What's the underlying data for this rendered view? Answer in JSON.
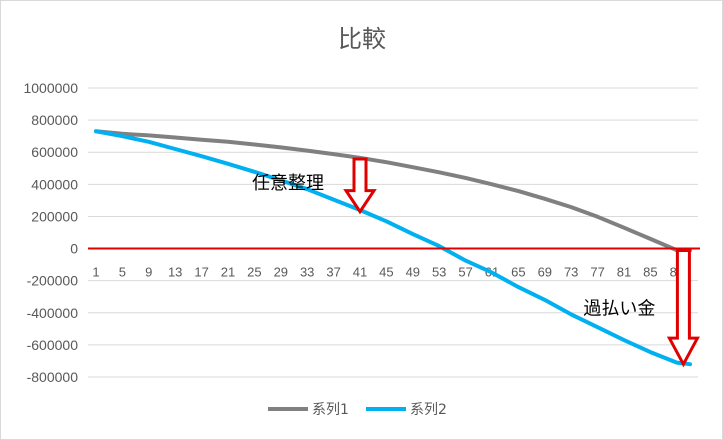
{
  "chart_data": {
    "type": "line",
    "title": "比較",
    "xlabel": "",
    "ylabel": "",
    "x_tick_labels": [
      "1",
      "5",
      "9",
      "13",
      "17",
      "21",
      "25",
      "29",
      "33",
      "37",
      "41",
      "45",
      "49",
      "53",
      "57",
      "61",
      "65",
      "69",
      "73",
      "77",
      "81",
      "85",
      "89"
    ],
    "x_range": [
      1,
      91
    ],
    "ylim": [
      -800000,
      1000000
    ],
    "y_ticks": [
      1000000,
      800000,
      600000,
      400000,
      200000,
      0,
      -200000,
      -400000,
      -600000,
      -800000
    ],
    "y_tick_labels": [
      "1000000",
      "800000",
      "600000",
      "400000",
      "200000",
      "0",
      "-200000",
      "-400000",
      "-600000",
      "-800000"
    ],
    "grid": true,
    "legend_position": "bottom",
    "series": [
      {
        "name": "系列1",
        "color": "#808080",
        "x": [
          1,
          5,
          9,
          13,
          17,
          21,
          25,
          29,
          33,
          37,
          41,
          45,
          49,
          53,
          57,
          61,
          65,
          69,
          73,
          77,
          81,
          85,
          89,
          91
        ],
        "values": [
          730000,
          715000,
          705000,
          692000,
          678000,
          665000,
          648000,
          630000,
          610000,
          588000,
          565000,
          538000,
          507000,
          475000,
          440000,
          400000,
          358000,
          310000,
          258000,
          198000,
          130000,
          60000,
          -10000,
          -10000
        ]
      },
      {
        "name": "系列2",
        "color": "#00B0F0",
        "x": [
          1,
          5,
          9,
          13,
          17,
          21,
          25,
          29,
          33,
          37,
          41,
          45,
          49,
          53,
          57,
          61,
          65,
          69,
          73,
          77,
          81,
          85,
          89,
          91
        ],
        "values": [
          730000,
          700000,
          665000,
          620000,
          575000,
          528000,
          478000,
          425000,
          370000,
          305000,
          240000,
          170000,
          90000,
          15000,
          -75000,
          -150000,
          -240000,
          -320000,
          -410000,
          -490000,
          -570000,
          -645000,
          -710000,
          -720000
        ]
      }
    ],
    "reference_line": {
      "value": 0,
      "color": "#E00000"
    },
    "annotations": [
      {
        "text": "任意整理",
        "arrow_x": 41,
        "arrow_from": 570000,
        "arrow_to": 230000
      },
      {
        "text": "過払い金",
        "arrow_x": 90,
        "arrow_from": 0,
        "arrow_to": -720000
      }
    ],
    "annotation_arrow_color": "#E00000"
  }
}
